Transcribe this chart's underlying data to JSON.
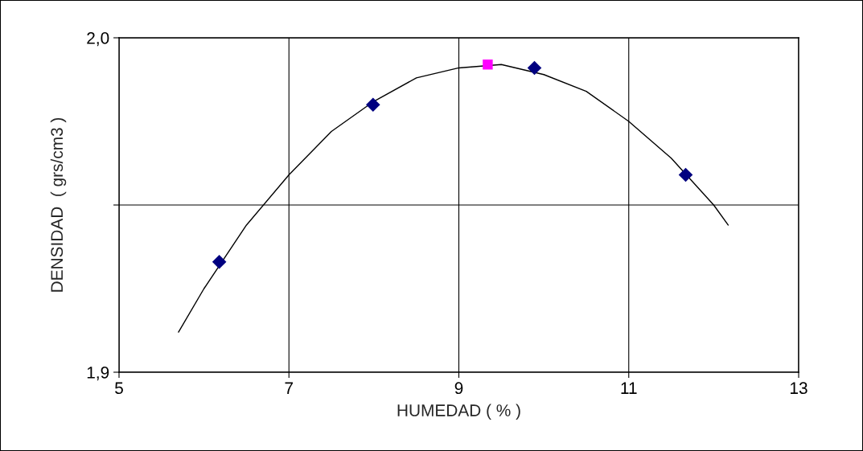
{
  "chart_data": {
    "type": "scatter",
    "xlabel": "HUMEDAD ( % )",
    "ylabel": "DENSIDAD  ( grs/cm3 )",
    "xlim": [
      5,
      13
    ],
    "ylim": [
      1.9,
      2.0
    ],
    "xticks": [
      5,
      7,
      9,
      11,
      13
    ],
    "yticks": [
      {
        "value": 1.9,
        "label": "1,9"
      },
      {
        "value": 1.95,
        "label": null
      },
      {
        "value": 2.0,
        "label": "2,0"
      }
    ],
    "grid": true,
    "series": [
      {
        "type": "line",
        "color": "#000000",
        "marker": "none",
        "line_style": "solid",
        "x": [
          5.7,
          6,
          6.5,
          7,
          7.5,
          8,
          8.5,
          9,
          9.5,
          10,
          10.5,
          11,
          11.5,
          12,
          12.17
        ],
        "values": [
          1.912,
          1.925,
          1.944,
          1.959,
          1.972,
          1.981,
          1.988,
          1.991,
          1.992,
          1.989,
          1.984,
          1.975,
          1.964,
          1.95,
          1.944
        ]
      },
      {
        "color": "#000080",
        "marker": "diamond",
        "x": [
          6.18,
          7.99,
          9.89,
          11.67
        ],
        "values": [
          1.933,
          1.98,
          1.991,
          1.959
        ]
      },
      {
        "color": "#ff00ff",
        "marker": "square",
        "x": [
          9.34
        ],
        "values": [
          1.992
        ]
      }
    ]
  }
}
